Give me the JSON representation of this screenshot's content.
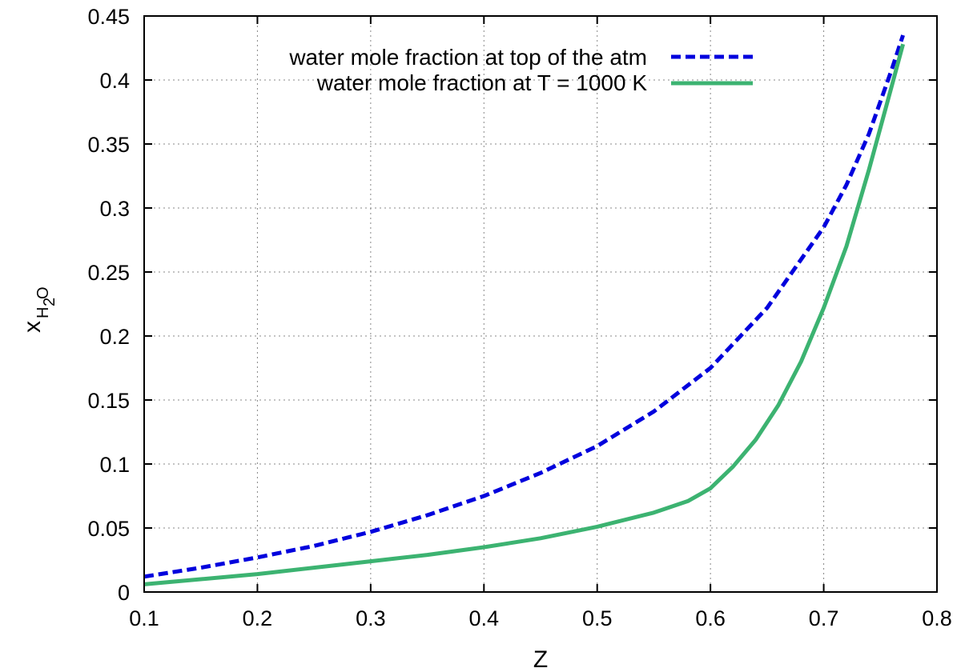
{
  "chart_data": {
    "type": "line",
    "xlabel": "Z",
    "ylabel": {
      "main": "x",
      "sub_h": "H",
      "sub_2": "2",
      "sub_o": "O"
    },
    "xlim": [
      0.1,
      0.8
    ],
    "ylim": [
      0,
      0.45
    ],
    "xticks": [
      0.1,
      0.2,
      0.3,
      0.4,
      0.5,
      0.6,
      0.7,
      0.8
    ],
    "yticks": [
      0,
      0.05,
      0.1,
      0.15,
      0.2,
      0.25,
      0.3,
      0.35,
      0.4,
      0.45
    ],
    "xtick_labels": [
      "0.1",
      "0.2",
      "0.3",
      "0.4",
      "0.5",
      "0.6",
      "0.7",
      "0.8"
    ],
    "ytick_labels": [
      "0",
      "0.05",
      "0.1",
      "0.15",
      "0.2",
      "0.25",
      "0.3",
      "0.35",
      "0.4",
      "0.45"
    ],
    "grid": true,
    "legend_position": "top-right",
    "series": [
      {
        "name": "water mole fraction at top of the atm",
        "color": "#0000dd",
        "style": "dashed",
        "x": [
          0.1,
          0.15,
          0.2,
          0.25,
          0.3,
          0.35,
          0.4,
          0.45,
          0.5,
          0.55,
          0.6,
          0.65,
          0.7,
          0.72,
          0.74,
          0.76,
          0.77
        ],
        "y": [
          0.012,
          0.019,
          0.027,
          0.036,
          0.047,
          0.06,
          0.075,
          0.093,
          0.114,
          0.141,
          0.175,
          0.222,
          0.285,
          0.318,
          0.358,
          0.408,
          0.435
        ]
      },
      {
        "name": "water mole fraction at T = 1000 K",
        "color": "#3cb371",
        "style": "solid",
        "x": [
          0.1,
          0.15,
          0.2,
          0.25,
          0.3,
          0.35,
          0.4,
          0.45,
          0.5,
          0.55,
          0.58,
          0.6,
          0.62,
          0.64,
          0.66,
          0.68,
          0.7,
          0.72,
          0.74,
          0.76,
          0.77
        ],
        "y": [
          0.006,
          0.01,
          0.014,
          0.019,
          0.024,
          0.029,
          0.035,
          0.042,
          0.051,
          0.062,
          0.071,
          0.081,
          0.098,
          0.119,
          0.146,
          0.18,
          0.222,
          0.27,
          0.33,
          0.395,
          0.428
        ]
      }
    ]
  }
}
